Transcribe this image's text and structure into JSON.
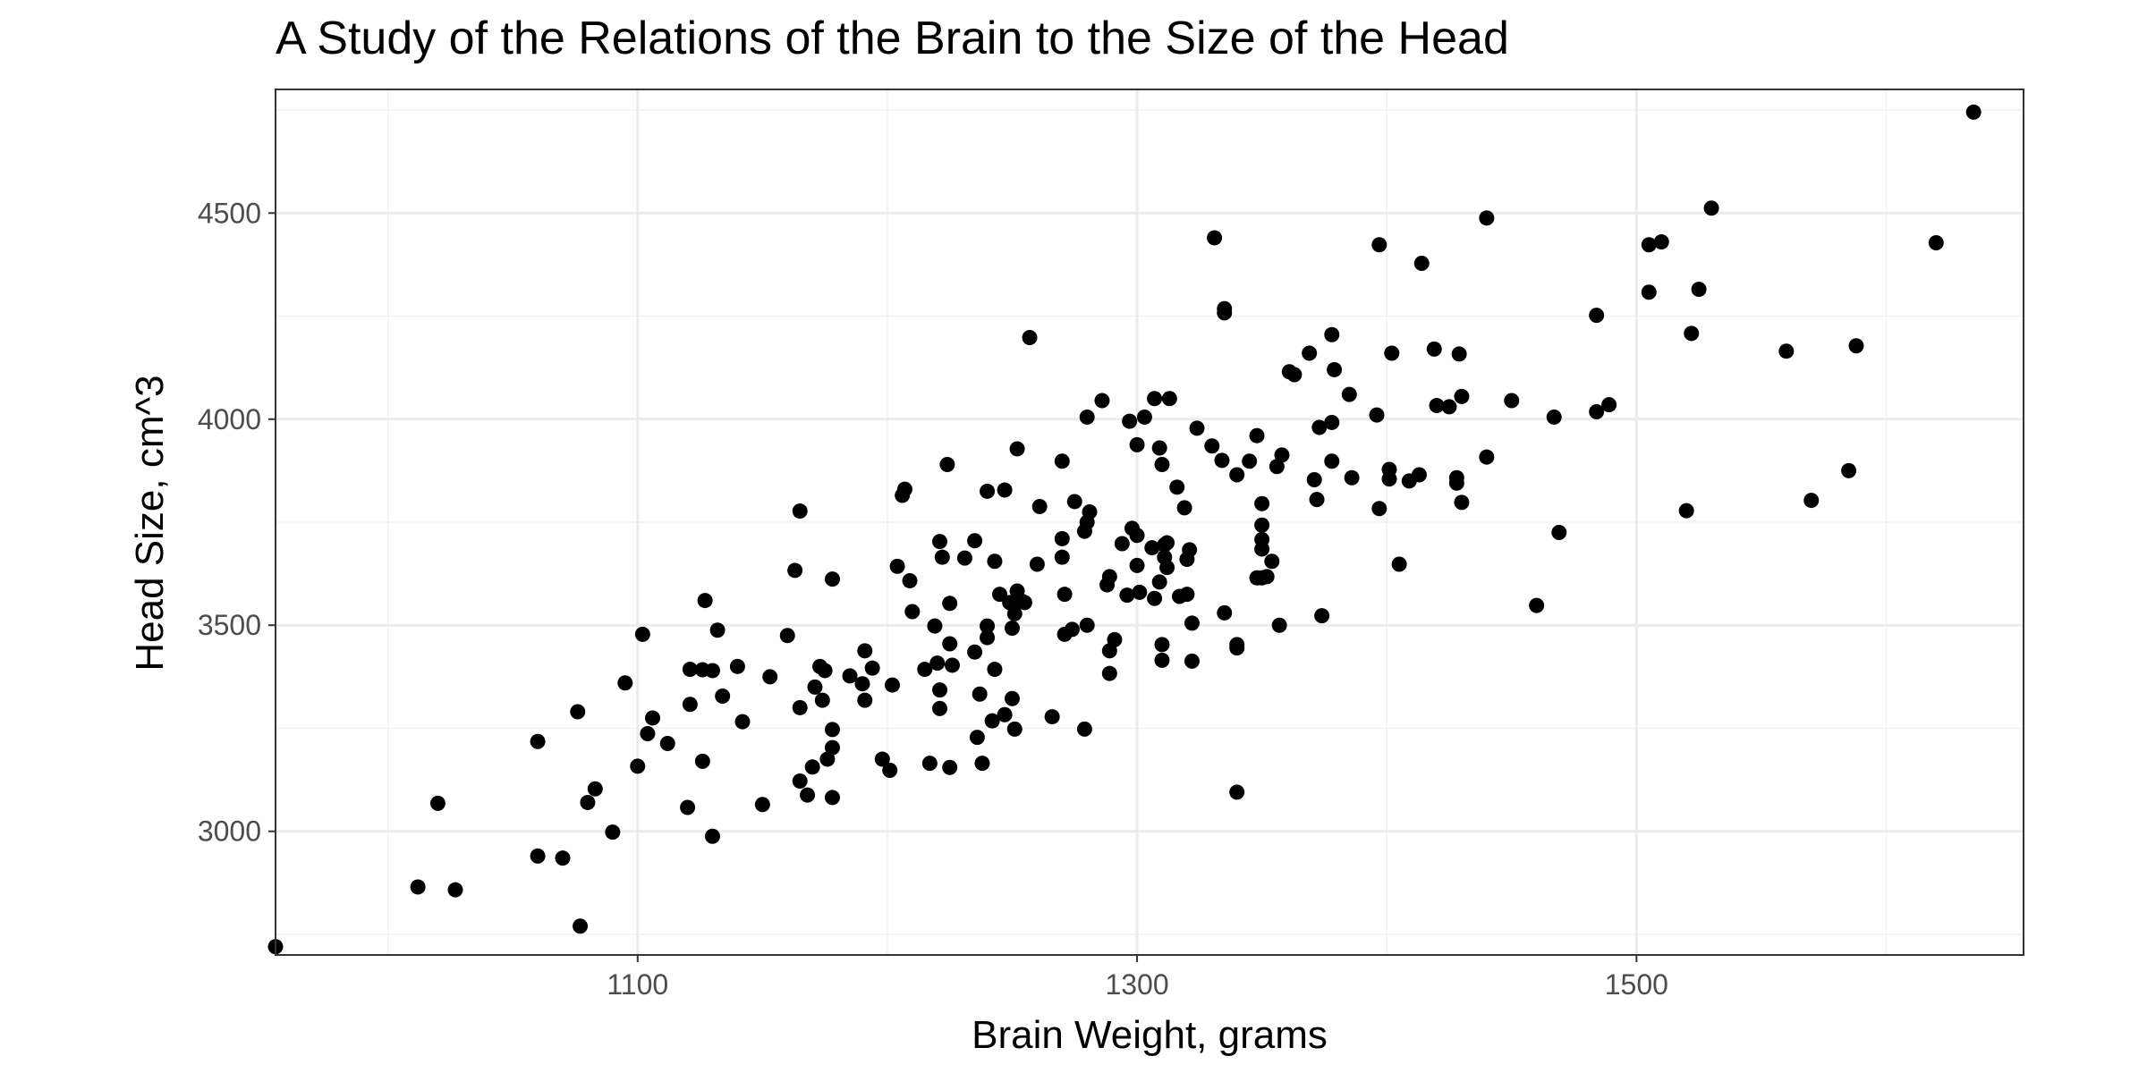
{
  "chart_data": {
    "type": "scatter",
    "title": "A Study of the Relations of the Brain to the Size of the Head",
    "xlabel": "Brain Weight, grams",
    "ylabel": "Head Size, cm^3",
    "xlim": [
      955,
      1655
    ],
    "ylim": [
      2700,
      4800
    ],
    "x_ticks": [
      1100,
      1300,
      1500
    ],
    "x_minor_ticks": [
      1000,
      1200,
      1400,
      1600
    ],
    "y_ticks": [
      3000,
      3500,
      4000,
      4500
    ],
    "y_minor_ticks": [
      2750,
      3250,
      3750,
      4250,
      4750
    ],
    "grid": true,
    "legend": "none",
    "point_color": "#000000",
    "points": [
      [
        955,
        2720
      ],
      [
        1012,
        2865
      ],
      [
        1027,
        2858
      ],
      [
        1020,
        3068
      ],
      [
        1060,
        2940
      ],
      [
        1070,
        2935
      ],
      [
        1077,
        2770
      ],
      [
        1060,
        3218
      ],
      [
        1080,
        3070
      ],
      [
        1083,
        3103
      ],
      [
        1076,
        3290
      ],
      [
        1090,
        2998
      ],
      [
        1100,
        3158
      ],
      [
        1095,
        3360
      ],
      [
        1102,
        3478
      ],
      [
        1104,
        3237
      ],
      [
        1106,
        3275
      ],
      [
        1112,
        3213
      ],
      [
        1120,
        3058
      ],
      [
        1121,
        3308
      ],
      [
        1121,
        3393
      ],
      [
        1126,
        3170
      ],
      [
        1126,
        3392
      ],
      [
        1127,
        3560
      ],
      [
        1130,
        2988
      ],
      [
        1130,
        3390
      ],
      [
        1132,
        3488
      ],
      [
        1134,
        3328
      ],
      [
        1140,
        3400
      ],
      [
        1142,
        3266
      ],
      [
        1150,
        3065
      ],
      [
        1153,
        3375
      ],
      [
        1160,
        3475
      ],
      [
        1163,
        3633
      ],
      [
        1165,
        3777
      ],
      [
        1165,
        3122
      ],
      [
        1165,
        3300
      ],
      [
        1168,
        3088
      ],
      [
        1170,
        3156
      ],
      [
        1171,
        3350
      ],
      [
        1173,
        3400
      ],
      [
        1174,
        3318
      ],
      [
        1175,
        3390
      ],
      [
        1176,
        3175
      ],
      [
        1178,
        3612
      ],
      [
        1178,
        3082
      ],
      [
        1178,
        3203
      ],
      [
        1178,
        3247
      ],
      [
        1185,
        3377
      ],
      [
        1190,
        3358
      ],
      [
        1191,
        3438
      ],
      [
        1191,
        3318
      ],
      [
        1194,
        3396
      ],
      [
        1198,
        3175
      ],
      [
        1201,
        3148
      ],
      [
        1202,
        3355
      ],
      [
        1204,
        3643
      ],
      [
        1206,
        3815
      ],
      [
        1207,
        3830
      ],
      [
        1209,
        3608
      ],
      [
        1210,
        3533
      ],
      [
        1215,
        3393
      ],
      [
        1217,
        3165
      ],
      [
        1219,
        3498
      ],
      [
        1220,
        3408
      ],
      [
        1221,
        3703
      ],
      [
        1221,
        3343
      ],
      [
        1221,
        3298
      ],
      [
        1222,
        3665
      ],
      [
        1224,
        3890
      ],
      [
        1225,
        3455
      ],
      [
        1225,
        3155
      ],
      [
        1225,
        3553
      ],
      [
        1226,
        3403
      ],
      [
        1231,
        3663
      ],
      [
        1235,
        3435
      ],
      [
        1235,
        3705
      ],
      [
        1236,
        3228
      ],
      [
        1237,
        3333
      ],
      [
        1238,
        3165
      ],
      [
        1240,
        3825
      ],
      [
        1240,
        3498
      ],
      [
        1240,
        3470
      ],
      [
        1242,
        3268
      ],
      [
        1243,
        3655
      ],
      [
        1243,
        3393
      ],
      [
        1245,
        3575
      ],
      [
        1247,
        3828
      ],
      [
        1247,
        3283
      ],
      [
        1249,
        3555
      ],
      [
        1250,
        3322
      ],
      [
        1250,
        3493
      ],
      [
        1251,
        3528
      ],
      [
        1251,
        3248
      ],
      [
        1252,
        3928
      ],
      [
        1252,
        3583
      ],
      [
        1254,
        3558
      ],
      [
        1255,
        3555
      ],
      [
        1257,
        4198
      ],
      [
        1260,
        3648
      ],
      [
        1261,
        3788
      ],
      [
        1266,
        3278
      ],
      [
        1270,
        3898
      ],
      [
        1270,
        3710
      ],
      [
        1270,
        3665
      ],
      [
        1271,
        3575
      ],
      [
        1271,
        3478
      ],
      [
        1274,
        3490
      ],
      [
        1275,
        3800
      ],
      [
        1279,
        3248
      ],
      [
        1279,
        3728
      ],
      [
        1280,
        3750
      ],
      [
        1280,
        3500
      ],
      [
        1280,
        4005
      ],
      [
        1281,
        3775
      ],
      [
        1286,
        4045
      ],
      [
        1288,
        3598
      ],
      [
        1289,
        3618
      ],
      [
        1289,
        3438
      ],
      [
        1289,
        3383
      ],
      [
        1291,
        3465
      ],
      [
        1294,
        3698
      ],
      [
        1296,
        3573
      ],
      [
        1297,
        3995
      ],
      [
        1298,
        3735
      ],
      [
        1300,
        3718
      ],
      [
        1300,
        3938
      ],
      [
        1300,
        3645
      ],
      [
        1301,
        3580
      ],
      [
        1303,
        4005
      ],
      [
        1306,
        3688
      ],
      [
        1307,
        3565
      ],
      [
        1307,
        4050
      ],
      [
        1309,
        3930
      ],
      [
        1309,
        3605
      ],
      [
        1310,
        3890
      ],
      [
        1310,
        3453
      ],
      [
        1310,
        3415
      ],
      [
        1311,
        3695
      ],
      [
        1311,
        3665
      ],
      [
        1312,
        3640
      ],
      [
        1312,
        3700
      ],
      [
        1313,
        4050
      ],
      [
        1316,
        3835
      ],
      [
        1317,
        3570
      ],
      [
        1319,
        3785
      ],
      [
        1320,
        3660
      ],
      [
        1320,
        3575
      ],
      [
        1321,
        3683
      ],
      [
        1322,
        3505
      ],
      [
        1322,
        3413
      ],
      [
        1324,
        3978
      ],
      [
        1330,
        3935
      ],
      [
        1331,
        4440
      ],
      [
        1334,
        3900
      ],
      [
        1335,
        3530
      ],
      [
        1335,
        4258
      ],
      [
        1335,
        4268
      ],
      [
        1340,
        3865
      ],
      [
        1340,
        3445
      ],
      [
        1340,
        3453
      ],
      [
        1340,
        3095
      ],
      [
        1345,
        3898
      ],
      [
        1348,
        3960
      ],
      [
        1348,
        3615
      ],
      [
        1350,
        3795
      ],
      [
        1350,
        3708
      ],
      [
        1350,
        3685
      ],
      [
        1350,
        3743
      ],
      [
        1350,
        3615
      ],
      [
        1352,
        3618
      ],
      [
        1354,
        3655
      ],
      [
        1356,
        3885
      ],
      [
        1357,
        3500
      ],
      [
        1358,
        3913
      ],
      [
        1361,
        4115
      ],
      [
        1363,
        4108
      ],
      [
        1369,
        4160
      ],
      [
        1371,
        3853
      ],
      [
        1372,
        3805
      ],
      [
        1373,
        3980
      ],
      [
        1374,
        3523
      ],
      [
        1378,
        3992
      ],
      [
        1378,
        3898
      ],
      [
        1378,
        4205
      ],
      [
        1379,
        4120
      ],
      [
        1385,
        4060
      ],
      [
        1386,
        3858
      ],
      [
        1397,
        4423
      ],
      [
        1396,
        4010
      ],
      [
        1397,
        3783
      ],
      [
        1401,
        3878
      ],
      [
        1401,
        3855
      ],
      [
        1402,
        4160
      ],
      [
        1405,
        3648
      ],
      [
        1409,
        3850
      ],
      [
        1413,
        3865
      ],
      [
        1414,
        4378
      ],
      [
        1419,
        4170
      ],
      [
        1420,
        4033
      ],
      [
        1425,
        4030
      ],
      [
        1428,
        3845
      ],
      [
        1428,
        3858
      ],
      [
        1429,
        4158
      ],
      [
        1430,
        3798
      ],
      [
        1430,
        4055
      ],
      [
        1440,
        3908
      ],
      [
        1440,
        4488
      ],
      [
        1450,
        4045
      ],
      [
        1460,
        3548
      ],
      [
        1467,
        4005
      ],
      [
        1469,
        3725
      ],
      [
        1484,
        4018
      ],
      [
        1484,
        4252
      ],
      [
        1489,
        4035
      ],
      [
        1505,
        4423
      ],
      [
        1505,
        4308
      ],
      [
        1510,
        4430
      ],
      [
        1520,
        3778
      ],
      [
        1522,
        4208
      ],
      [
        1525,
        4315
      ],
      [
        1530,
        4512
      ],
      [
        1560,
        4165
      ],
      [
        1570,
        3803
      ],
      [
        1585,
        3875
      ],
      [
        1588,
        4178
      ],
      [
        1620,
        4428
      ],
      [
        1635,
        4745
      ]
    ]
  }
}
